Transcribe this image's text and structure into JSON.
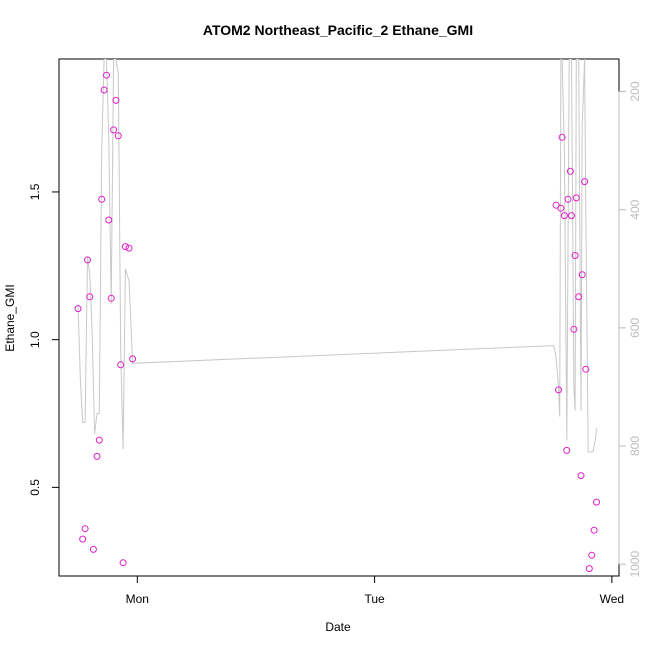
{
  "chart_data": {
    "type": "scatter",
    "title": "ATOM2 Northeast_Pacific_2 Ethane_GMI",
    "xlabel": "Date",
    "ylabel": "Ethane_GMI",
    "x_ticks": [
      "Mon",
      "Tue",
      "Wed"
    ],
    "y_ticks": [
      "0.5",
      "1.0",
      "1.5"
    ],
    "y2_ticks": [
      "200",
      "400",
      "600",
      "800",
      "1000"
    ],
    "xlim_days": [
      -0.33,
      2.03
    ],
    "ylim": [
      0.2,
      1.95
    ],
    "y2lim": [
      1020,
      145
    ],
    "y2_reversed": true,
    "point_color": "#e020c8",
    "line_color": "#c8c8c8",
    "points": [
      {
        "x": -0.25,
        "y": 1.105
      },
      {
        "x": -0.23,
        "y": 0.325
      },
      {
        "x": -0.22,
        "y": 0.36
      },
      {
        "x": -0.21,
        "y": 1.27
      },
      {
        "x": -0.2,
        "y": 1.145
      },
      {
        "x": -0.185,
        "y": 0.29
      },
      {
        "x": -0.17,
        "y": 0.605
      },
      {
        "x": -0.16,
        "y": 0.66
      },
      {
        "x": -0.15,
        "y": 1.475
      },
      {
        "x": -0.14,
        "y": 1.845
      },
      {
        "x": -0.13,
        "y": 1.895
      },
      {
        "x": -0.12,
        "y": 1.405
      },
      {
        "x": -0.11,
        "y": 1.14
      },
      {
        "x": -0.1,
        "y": 1.71
      },
      {
        "x": -0.09,
        "y": 1.81
      },
      {
        "x": -0.08,
        "y": 1.69
      },
      {
        "x": -0.07,
        "y": 0.915
      },
      {
        "x": -0.06,
        "y": 0.245
      },
      {
        "x": -0.05,
        "y": 1.315
      },
      {
        "x": -0.035,
        "y": 1.31
      },
      {
        "x": -0.02,
        "y": 0.935
      },
      {
        "x": 1.765,
        "y": 1.455
      },
      {
        "x": 1.775,
        "y": 0.83
      },
      {
        "x": 1.785,
        "y": 1.445
      },
      {
        "x": 1.79,
        "y": 1.685
      },
      {
        "x": 1.8,
        "y": 1.42
      },
      {
        "x": 1.81,
        "y": 0.625
      },
      {
        "x": 1.815,
        "y": 1.475
      },
      {
        "x": 1.825,
        "y": 1.57
      },
      {
        "x": 1.83,
        "y": 1.42
      },
      {
        "x": 1.84,
        "y": 1.035
      },
      {
        "x": 1.845,
        "y": 1.285
      },
      {
        "x": 1.85,
        "y": 1.48
      },
      {
        "x": 1.86,
        "y": 1.145
      },
      {
        "x": 1.87,
        "y": 0.54
      },
      {
        "x": 1.875,
        "y": 1.22
      },
      {
        "x": 1.885,
        "y": 1.535
      },
      {
        "x": 1.89,
        "y": 0.9
      },
      {
        "x": 1.905,
        "y": 0.225
      },
      {
        "x": 1.915,
        "y": 0.27
      },
      {
        "x": 1.925,
        "y": 0.355
      },
      {
        "x": 1.935,
        "y": 0.45
      }
    ],
    "pressure_line": [
      {
        "x": -0.25,
        "p": 560
      },
      {
        "x": -0.24,
        "p": 690
      },
      {
        "x": -0.23,
        "p": 760
      },
      {
        "x": -0.22,
        "p": 760
      },
      {
        "x": -0.21,
        "p": 480
      },
      {
        "x": -0.2,
        "p": 510
      },
      {
        "x": -0.19,
        "p": 610
      },
      {
        "x": -0.18,
        "p": 780
      },
      {
        "x": -0.17,
        "p": 745
      },
      {
        "x": -0.16,
        "p": 745
      },
      {
        "x": -0.15,
        "p": 300
      },
      {
        "x": -0.14,
        "p": 145
      },
      {
        "x": -0.13,
        "p": 145
      },
      {
        "x": -0.12,
        "p": 280
      },
      {
        "x": -0.11,
        "p": 560
      },
      {
        "x": -0.1,
        "p": 145
      },
      {
        "x": -0.09,
        "p": 145
      },
      {
        "x": -0.08,
        "p": 170
      },
      {
        "x": -0.07,
        "p": 640
      },
      {
        "x": -0.06,
        "p": 805
      },
      {
        "x": -0.05,
        "p": 500
      },
      {
        "x": -0.035,
        "p": 520
      },
      {
        "x": -0.02,
        "p": 660
      },
      {
        "x": 1.755,
        "p": 630
      },
      {
        "x": 1.765,
        "p": 650
      },
      {
        "x": 1.775,
        "p": 700
      },
      {
        "x": 1.78,
        "p": 750
      },
      {
        "x": 1.785,
        "p": 145
      },
      {
        "x": 1.79,
        "p": 145
      },
      {
        "x": 1.8,
        "p": 300
      },
      {
        "x": 1.81,
        "p": 790
      },
      {
        "x": 1.82,
        "p": 145
      },
      {
        "x": 1.83,
        "p": 145
      },
      {
        "x": 1.84,
        "p": 700
      },
      {
        "x": 1.845,
        "p": 740
      },
      {
        "x": 1.85,
        "p": 145
      },
      {
        "x": 1.86,
        "p": 145
      },
      {
        "x": 1.87,
        "p": 740
      },
      {
        "x": 1.875,
        "p": 260
      },
      {
        "x": 1.885,
        "p": 145
      },
      {
        "x": 1.89,
        "p": 400
      },
      {
        "x": 1.9,
        "p": 810
      },
      {
        "x": 1.91,
        "p": 810
      },
      {
        "x": 1.92,
        "p": 810
      },
      {
        "x": 1.93,
        "p": 790
      },
      {
        "x": 1.935,
        "p": 770
      }
    ]
  }
}
